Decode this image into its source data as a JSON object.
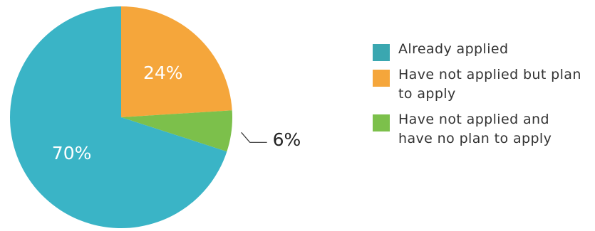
{
  "chart_data": {
    "type": "pie",
    "title": "",
    "slices": [
      {
        "label": "Already applied",
        "value": 70,
        "display": "70%",
        "color": "#3ab4c6"
      },
      {
        "label": "Have not applied but plan to apply",
        "value": 24,
        "display": "24%",
        "color": "#f5a63b"
      },
      {
        "label": "Have not applied and have no plan to apply",
        "value": 6,
        "display": "6%",
        "color": "#7cc04b"
      }
    ],
    "start_angle_deg": 0,
    "direction": "clockwise",
    "legend_placement": "right"
  },
  "legend": {
    "items": [
      {
        "label": "Already applied",
        "color": "#3aa7b0"
      },
      {
        "label": "Have not applied but plan to apply",
        "color": "#f5a63b"
      },
      {
        "label": "Have not applied and have no plan to apply",
        "color": "#7cc04b"
      }
    ]
  }
}
